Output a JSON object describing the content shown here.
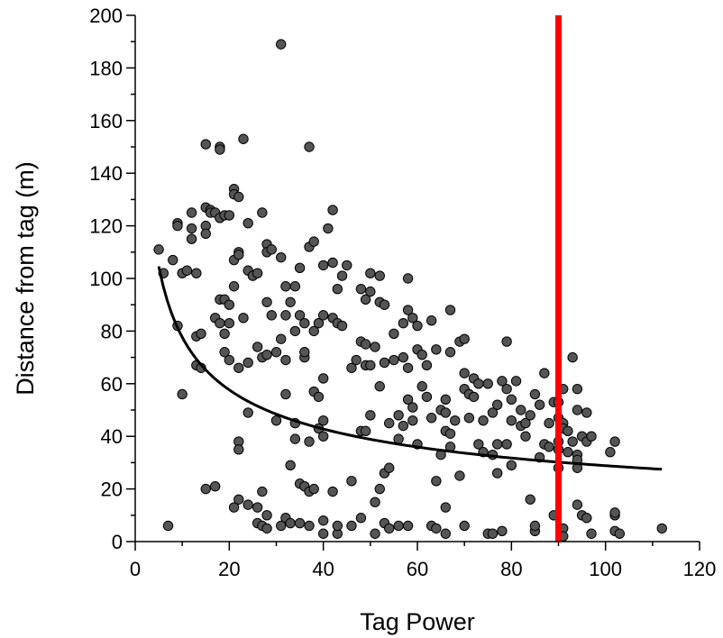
{
  "chart_data": {
    "type": "scatter",
    "title": "",
    "xlabel": "Tag Power",
    "ylabel": "Distance from tag (m)",
    "xlim": [
      0,
      120
    ],
    "ylim": [
      0,
      200
    ],
    "x_ticks": [
      0,
      20,
      40,
      60,
      80,
      100,
      120
    ],
    "y_ticks": [
      0,
      20,
      40,
      60,
      80,
      100,
      120,
      140,
      160,
      180,
      200
    ],
    "x_minor_step": 10,
    "y_minor_step": 10,
    "grid": false,
    "legend": "none",
    "point_color": "#555555",
    "curve_color": "#000000",
    "vline_color": "#ff0000",
    "vline": {
      "x": 90
    },
    "fit_curve": {
      "form": "power",
      "a": 209,
      "b": -0.43,
      "x_range": [
        5,
        112
      ]
    },
    "points": [
      [
        5,
        111
      ],
      [
        6,
        102
      ],
      [
        7,
        6
      ],
      [
        8,
        107
      ],
      [
        9,
        121
      ],
      [
        9,
        82
      ],
      [
        9,
        120
      ],
      [
        10,
        56
      ],
      [
        10,
        102
      ],
      [
        11,
        103
      ],
      [
        12,
        125
      ],
      [
        12,
        119
      ],
      [
        12,
        115
      ],
      [
        13,
        102
      ],
      [
        13,
        78
      ],
      [
        13,
        67
      ],
      [
        14,
        66
      ],
      [
        14,
        79
      ],
      [
        15,
        151
      ],
      [
        15,
        127
      ],
      [
        15,
        120
      ],
      [
        15,
        117
      ],
      [
        15,
        20
      ],
      [
        16,
        126
      ],
      [
        16,
        125
      ],
      [
        17,
        125
      ],
      [
        17,
        85
      ],
      [
        17,
        21
      ],
      [
        18,
        150
      ],
      [
        18,
        149
      ],
      [
        18,
        123
      ],
      [
        18,
        92
      ],
      [
        18,
        83
      ],
      [
        19,
        124
      ],
      [
        19,
        92
      ],
      [
        19,
        72
      ],
      [
        19,
        79
      ],
      [
        20,
        83
      ],
      [
        20,
        90
      ],
      [
        20,
        69
      ],
      [
        20,
        124
      ],
      [
        21,
        134
      ],
      [
        21,
        132
      ],
      [
        21,
        107
      ],
      [
        21,
        97
      ],
      [
        21,
        13
      ],
      [
        22,
        131
      ],
      [
        22,
        110
      ],
      [
        22,
        109
      ],
      [
        22,
        38
      ],
      [
        22,
        35
      ],
      [
        22,
        66
      ],
      [
        22,
        16
      ],
      [
        23,
        153
      ],
      [
        23,
        85
      ],
      [
        24,
        121
      ],
      [
        24,
        103
      ],
      [
        24,
        68
      ],
      [
        24,
        49
      ],
      [
        24,
        14
      ],
      [
        25,
        101
      ],
      [
        26,
        102
      ],
      [
        26,
        74
      ],
      [
        26,
        7
      ],
      [
        26,
        13
      ],
      [
        27,
        125
      ],
      [
        27,
        70
      ],
      [
        27,
        19
      ],
      [
        27,
        6
      ],
      [
        28,
        113
      ],
      [
        28,
        110
      ],
      [
        28,
        91
      ],
      [
        28,
        71
      ],
      [
        28,
        10
      ],
      [
        28,
        5
      ],
      [
        29,
        86
      ],
      [
        29,
        111
      ],
      [
        30,
        72
      ],
      [
        30,
        46
      ],
      [
        31,
        189
      ],
      [
        31,
        108
      ],
      [
        31,
        77
      ],
      [
        31,
        6
      ],
      [
        32,
        97
      ],
      [
        32,
        86
      ],
      [
        32,
        69
      ],
      [
        32,
        56
      ],
      [
        32,
        9
      ],
      [
        33,
        91
      ],
      [
        33,
        29
      ],
      [
        33,
        7
      ],
      [
        34,
        80
      ],
      [
        34,
        97
      ],
      [
        34,
        45
      ],
      [
        34,
        39
      ],
      [
        35,
        86
      ],
      [
        35,
        104
      ],
      [
        35,
        22
      ],
      [
        35,
        7
      ],
      [
        36,
        70
      ],
      [
        36,
        72
      ],
      [
        36,
        83
      ],
      [
        36,
        21
      ],
      [
        37,
        150
      ],
      [
        37,
        112
      ],
      [
        37,
        38
      ],
      [
        37,
        19
      ],
      [
        37,
        6
      ],
      [
        38,
        114
      ],
      [
        38,
        80
      ],
      [
        38,
        57
      ],
      [
        38,
        20
      ],
      [
        39,
        83
      ],
      [
        39,
        55
      ],
      [
        39,
        43
      ],
      [
        40,
        105
      ],
      [
        40,
        86
      ],
      [
        40,
        62
      ],
      [
        40,
        46
      ],
      [
        40,
        40
      ],
      [
        40,
        8
      ],
      [
        40,
        3
      ],
      [
        41,
        119
      ],
      [
        42,
        126
      ],
      [
        42,
        106
      ],
      [
        42,
        85
      ],
      [
        42,
        19
      ],
      [
        43,
        96
      ],
      [
        43,
        83
      ],
      [
        43,
        3
      ],
      [
        43,
        6
      ],
      [
        44,
        101
      ],
      [
        44,
        82
      ],
      [
        45,
        105
      ],
      [
        46,
        66
      ],
      [
        46,
        23
      ],
      [
        46,
        6
      ],
      [
        47,
        69
      ],
      [
        48,
        96
      ],
      [
        48,
        76
      ],
      [
        48,
        42
      ],
      [
        48,
        9
      ],
      [
        49,
        92
      ],
      [
        49,
        75
      ],
      [
        49,
        67
      ],
      [
        49,
        42
      ],
      [
        50,
        102
      ],
      [
        50,
        95
      ],
      [
        50,
        67
      ],
      [
        50,
        48
      ],
      [
        51,
        74
      ],
      [
        51,
        15
      ],
      [
        51,
        3
      ],
      [
        52,
        101
      ],
      [
        52,
        91
      ],
      [
        52,
        59
      ],
      [
        52,
        20
      ],
      [
        53,
        90
      ],
      [
        53,
        68
      ],
      [
        53,
        26
      ],
      [
        53,
        7
      ],
      [
        54,
        45
      ],
      [
        54,
        28
      ],
      [
        54,
        5
      ],
      [
        55,
        79
      ],
      [
        55,
        69
      ],
      [
        56,
        48
      ],
      [
        56,
        39
      ],
      [
        56,
        6
      ],
      [
        57,
        83
      ],
      [
        57,
        70
      ],
      [
        57,
        44
      ],
      [
        58,
        100
      ],
      [
        58,
        88
      ],
      [
        58,
        66
      ],
      [
        58,
        54
      ],
      [
        58,
        6
      ],
      [
        59,
        85
      ],
      [
        59,
        51
      ],
      [
        59,
        46
      ],
      [
        60,
        82
      ],
      [
        60,
        73
      ],
      [
        60,
        37
      ],
      [
        61,
        71
      ],
      [
        61,
        59
      ],
      [
        62,
        67
      ],
      [
        62,
        55
      ],
      [
        63,
        84
      ],
      [
        63,
        47
      ],
      [
        63,
        6
      ],
      [
        64,
        73
      ],
      [
        64,
        23
      ],
      [
        64,
        5
      ],
      [
        65,
        50
      ],
      [
        65,
        33
      ],
      [
        66,
        54
      ],
      [
        66,
        49
      ],
      [
        66,
        42
      ],
      [
        66,
        13
      ],
      [
        66,
        3
      ],
      [
        67,
        88
      ],
      [
        67,
        72
      ],
      [
        67,
        41
      ],
      [
        67,
        36
      ],
      [
        68,
        46
      ],
      [
        69,
        76
      ],
      [
        69,
        25
      ],
      [
        70,
        77
      ],
      [
        70,
        64
      ],
      [
        70,
        58
      ],
      [
        70,
        6
      ],
      [
        71,
        56
      ],
      [
        71,
        47
      ],
      [
        72,
        62
      ],
      [
        72,
        55
      ],
      [
        73,
        60
      ],
      [
        73,
        37
      ],
      [
        74,
        46
      ],
      [
        74,
        34
      ],
      [
        75,
        60
      ],
      [
        75,
        3
      ],
      [
        76,
        49
      ],
      [
        76,
        33
      ],
      [
        76,
        3
      ],
      [
        77,
        52
      ],
      [
        77,
        37
      ],
      [
        77,
        26
      ],
      [
        78,
        61
      ],
      [
        78,
        4
      ],
      [
        79,
        76
      ],
      [
        79,
        58
      ],
      [
        79,
        37
      ],
      [
        80,
        54
      ],
      [
        80,
        46
      ],
      [
        80,
        29
      ],
      [
        81,
        61
      ],
      [
        82,
        50
      ],
      [
        82,
        44
      ],
      [
        83,
        45
      ],
      [
        83,
        40
      ],
      [
        84,
        16
      ],
      [
        84,
        48
      ],
      [
        85,
        56
      ],
      [
        85,
        4
      ],
      [
        85,
        6
      ],
      [
        86,
        52
      ],
      [
        86,
        32
      ],
      [
        87,
        64
      ],
      [
        87,
        37
      ],
      [
        88,
        45
      ],
      [
        88,
        36
      ],
      [
        89,
        53
      ],
      [
        89,
        10
      ],
      [
        90,
        35
      ],
      [
        90,
        28
      ],
      [
        90,
        53
      ],
      [
        90,
        47
      ],
      [
        90,
        38
      ],
      [
        91,
        58
      ],
      [
        91,
        45
      ],
      [
        91,
        43
      ],
      [
        91,
        5
      ],
      [
        91,
        2
      ],
      [
        92,
        42
      ],
      [
        92,
        34
      ],
      [
        93,
        70
      ],
      [
        93,
        38
      ],
      [
        94,
        58
      ],
      [
        94,
        50
      ],
      [
        94,
        33
      ],
      [
        94,
        31
      ],
      [
        94,
        28
      ],
      [
        94,
        14
      ],
      [
        95,
        40
      ],
      [
        95,
        10
      ],
      [
        96,
        49
      ],
      [
        96,
        38
      ],
      [
        96,
        9
      ],
      [
        97,
        40
      ],
      [
        97,
        3
      ],
      [
        101,
        34
      ],
      [
        102,
        38
      ],
      [
        102,
        10
      ],
      [
        102,
        4
      ],
      [
        102,
        11
      ],
      [
        103,
        3
      ],
      [
        112,
        5
      ]
    ]
  }
}
